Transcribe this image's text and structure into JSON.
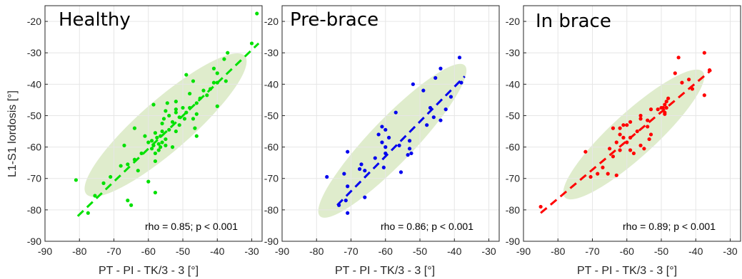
{
  "colors": {
    "ellipse": "#dfeccc",
    "grid": "#e6e6e6",
    "axis": "#262626"
  },
  "chart_data": [
    {
      "type": "scatter",
      "title": "Healthy",
      "color": "#00e000",
      "annotation": "rho = 0.85; p < 0.001",
      "xlabel": "PT - PI - TK/3 - 3 [°]",
      "ylabel": "L1-S1 lordosis [°]",
      "xlim": [
        -90,
        -27
      ],
      "ylim": [
        -90,
        -15
      ],
      "xticks": [
        -90,
        -80,
        -70,
        -60,
        -50,
        -40,
        -30
      ],
      "yticks": [
        -90,
        -80,
        -70,
        -60,
        -50,
        -40,
        -30,
        -20
      ],
      "grid": true,
      "fit_line": [
        [
          -80.5,
          -82
        ],
        [
          -28,
          -27
        ]
      ],
      "ellipse": {
        "center": [
          -55,
          -53
        ],
        "axis_end": [
          -32,
          -31
        ],
        "minor_end": [
          -60,
          -47
        ]
      },
      "points": [
        [
          -28.5,
          -17.5
        ],
        [
          -30,
          -27
        ],
        [
          -37,
          -30
        ],
        [
          -38,
          -32
        ],
        [
          -41,
          -35
        ],
        [
          -40,
          -36.5
        ],
        [
          -49,
          -37
        ],
        [
          -37.5,
          -39
        ],
        [
          -47,
          -39
        ],
        [
          -40,
          -39.5
        ],
        [
          -41,
          -39.5
        ],
        [
          -42,
          -41.5
        ],
        [
          -44,
          -42
        ],
        [
          -48,
          -43
        ],
        [
          -43,
          -43.5
        ],
        [
          -45,
          -44.5
        ],
        [
          -52,
          -45.5
        ],
        [
          -54.5,
          -46
        ],
        [
          -46,
          -46
        ],
        [
          -58.5,
          -46.5
        ],
        [
          -40,
          -47
        ],
        [
          -48,
          -47.5
        ],
        [
          -50,
          -47.5
        ],
        [
          -52,
          -48
        ],
        [
          -55,
          -48.5
        ],
        [
          -49,
          -49
        ],
        [
          -52,
          -49
        ],
        [
          -46,
          -49.5
        ],
        [
          -54,
          -50
        ],
        [
          -51,
          -50.5
        ],
        [
          -55.5,
          -51
        ],
        [
          -49.5,
          -51
        ],
        [
          -47,
          -51
        ],
        [
          -53,
          -52
        ],
        [
          -56,
          -52.5
        ],
        [
          -51,
          -53
        ],
        [
          -46.5,
          -54
        ],
        [
          -54,
          -54.5
        ],
        [
          -64,
          -54
        ],
        [
          -56,
          -55
        ],
        [
          -52,
          -55
        ],
        [
          -58,
          -55.5
        ],
        [
          -61,
          -56.5
        ],
        [
          -46,
          -56.5
        ],
        [
          -56.5,
          -56.5
        ],
        [
          -57.5,
          -57
        ],
        [
          -55,
          -57.5
        ],
        [
          -59,
          -58
        ],
        [
          -56,
          -58.5
        ],
        [
          -60,
          -58.5
        ],
        [
          -57,
          -59
        ],
        [
          -55,
          -59.5
        ],
        [
          -58.5,
          -59.5
        ],
        [
          -67,
          -59.5
        ],
        [
          -56.5,
          -60
        ],
        [
          -53,
          -60
        ],
        [
          -59,
          -60.5
        ],
        [
          -57,
          -61
        ],
        [
          -58,
          -62
        ],
        [
          -62,
          -62
        ],
        [
          -64,
          -64
        ],
        [
          -58,
          -64.5
        ],
        [
          -66,
          -65.5
        ],
        [
          -68,
          -66
        ],
        [
          -63,
          -67.5
        ],
        [
          -71,
          -69.5
        ],
        [
          -60,
          -71
        ],
        [
          -73,
          -71.5
        ],
        [
          -81,
          -70.5
        ],
        [
          -58,
          -74.5
        ],
        [
          -66,
          -77
        ],
        [
          -65,
          -78.5
        ],
        [
          -75.5,
          -75.5
        ],
        [
          -77.5,
          -81
        ]
      ]
    },
    {
      "type": "scatter",
      "title": "Pre-brace",
      "color": "#0000ee",
      "annotation": "rho = 0.86; p < 0.001",
      "xlabel": "PT - PI - TK/3 - 3 [°]",
      "xlim": [
        -90,
        -27
      ],
      "ylim": [
        -90,
        -15
      ],
      "xticks": [
        -90,
        -80,
        -70,
        -60,
        -50,
        -40,
        -30
      ],
      "yticks": [
        -90,
        -80,
        -70,
        -60,
        -50,
        -40,
        -30,
        -20
      ],
      "grid": true,
      "fit_line": [
        [
          -74,
          -78.5
        ],
        [
          -37,
          -37.5
        ]
      ],
      "ellipse": {
        "center": [
          -58,
          -58
        ],
        "axis_end": [
          -37,
          -34
        ],
        "minor_end": [
          -62.5,
          -53
        ]
      },
      "points": [
        [
          -38.5,
          -31.5
        ],
        [
          -44,
          -35
        ],
        [
          -45.5,
          -38
        ],
        [
          -38,
          -39.5
        ],
        [
          -52,
          -40
        ],
        [
          -49,
          -42
        ],
        [
          -41,
          -44
        ],
        [
          -47,
          -47.5
        ],
        [
          -42.5,
          -48
        ],
        [
          -57,
          -49
        ],
        [
          -46,
          -50.5
        ],
        [
          -44,
          -51.5
        ],
        [
          -48,
          -53
        ],
        [
          -61,
          -53.5
        ],
        [
          -60,
          -54.5
        ],
        [
          -62,
          -56
        ],
        [
          -59,
          -57
        ],
        [
          -53,
          -58
        ],
        [
          -61,
          -58.5
        ],
        [
          -56,
          -59.5
        ],
        [
          -60,
          -60
        ],
        [
          -53,
          -60.5
        ],
        [
          -52.5,
          -62
        ],
        [
          -53.5,
          -62.5
        ],
        [
          -71,
          -61.5
        ],
        [
          -60,
          -62
        ],
        [
          -63,
          -63.5
        ],
        [
          -60.5,
          -66.5
        ],
        [
          -67,
          -65.5
        ],
        [
          -66,
          -67.5
        ],
        [
          -67.5,
          -67
        ],
        [
          -55.5,
          -68
        ],
        [
          -72,
          -68.5
        ],
        [
          -77,
          -69.5
        ],
        [
          -71,
          -72.5
        ],
        [
          -66,
          -76
        ],
        [
          -73.5,
          -78.5
        ],
        [
          -71.5,
          -77
        ],
        [
          -71,
          -81
        ]
      ]
    },
    {
      "type": "scatter",
      "title": "In brace",
      "color": "#ff0000",
      "annotation": "rho = 0.89; p < 0.001",
      "xlabel": "PT - PI - TK/3 - 3 [°]",
      "xlim": [
        -90,
        -27
      ],
      "ylim": [
        -90,
        -15
      ],
      "xticks": [
        -90,
        -80,
        -70,
        -60,
        -50,
        -40,
        -30
      ],
      "yticks": [
        -90,
        -80,
        -70,
        -60,
        -50,
        -40,
        -30,
        -20
      ],
      "grid": true,
      "fit_line": [
        [
          -85,
          -81
        ],
        [
          -35.5,
          -35.5
        ]
      ],
      "ellipse": {
        "center": [
          -58,
          -56
        ],
        "axis_end": [
          -38,
          -36
        ],
        "minor_end": [
          -62.5,
          -51
        ]
      },
      "points": [
        [
          -37.5,
          -30
        ],
        [
          -45,
          -31.5
        ],
        [
          -46,
          -36.5
        ],
        [
          -36,
          -35.5
        ],
        [
          -42,
          -38.5
        ],
        [
          -44,
          -39.5
        ],
        [
          -41,
          -41.5
        ],
        [
          -48,
          -44.5
        ],
        [
          -48.5,
          -45.5
        ],
        [
          -49,
          -46.5
        ],
        [
          -48.5,
          -47.5
        ],
        [
          -49.5,
          -47.5
        ],
        [
          -50,
          -47.5
        ],
        [
          -51,
          -48
        ],
        [
          -53,
          -48
        ],
        [
          -49,
          -49
        ],
        [
          -49,
          -49.5
        ],
        [
          -37.5,
          -43.5
        ],
        [
          -56,
          -50
        ],
        [
          -56,
          -51
        ],
        [
          -54,
          -51.5
        ],
        [
          -59,
          -52
        ],
        [
          -60,
          -53
        ],
        [
          -54,
          -53.5
        ],
        [
          -61,
          -53
        ],
        [
          -62,
          -54
        ],
        [
          -64,
          -54
        ],
        [
          -57,
          -55
        ],
        [
          -53,
          -56
        ],
        [
          -62,
          -56
        ],
        [
          -59,
          -57
        ],
        [
          -61,
          -57
        ],
        [
          -53.5,
          -57.5
        ],
        [
          -60,
          -58.5
        ],
        [
          -63,
          -58.5
        ],
        [
          -56,
          -59.5
        ],
        [
          -55,
          -60.5
        ],
        [
          -59,
          -61
        ],
        [
          -58,
          -62
        ],
        [
          -62,
          -61
        ],
        [
          -65,
          -60.5
        ],
        [
          -64,
          -63
        ],
        [
          -72,
          -61.5
        ],
        [
          -67,
          -66.5
        ],
        [
          -68.5,
          -68.5
        ],
        [
          -65.5,
          -68.5
        ],
        [
          -63,
          -69
        ],
        [
          -70.5,
          -69.5
        ],
        [
          -85,
          -79
        ]
      ]
    }
  ]
}
